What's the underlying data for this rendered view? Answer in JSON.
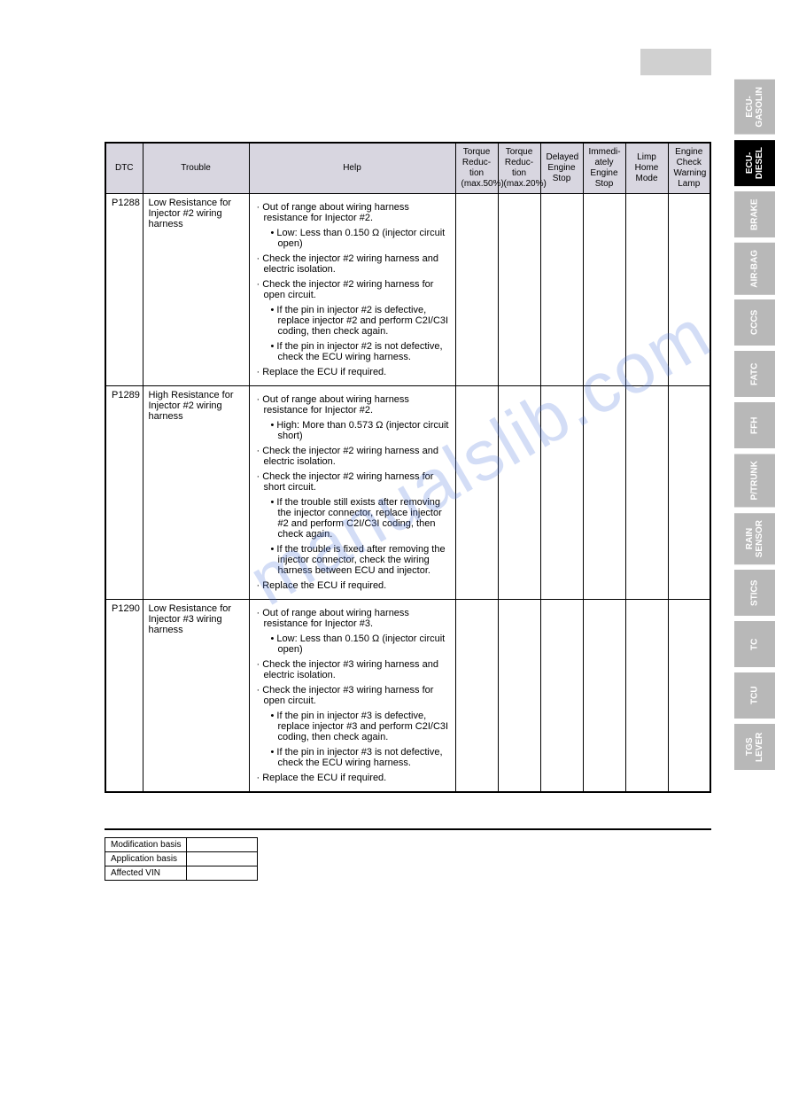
{
  "header_gray_box": "",
  "watermark_text": "manualslib.com",
  "side_tabs": [
    {
      "label": "ECU-\nGASOLIN",
      "active": false
    },
    {
      "label": "ECU-\nDIESEL",
      "active": true
    },
    {
      "label": "BRAKE",
      "active": false
    },
    {
      "label": "AIR-BAG",
      "active": false
    },
    {
      "label": "CCCS",
      "active": false
    },
    {
      "label": "FATC",
      "active": false
    },
    {
      "label": "FFH",
      "active": false
    },
    {
      "label": "P/TRUNK",
      "active": false
    },
    {
      "label": "RAIN\nSENSOR",
      "active": false
    },
    {
      "label": "STICS",
      "active": false
    },
    {
      "label": "TC",
      "active": false
    },
    {
      "label": "TCU",
      "active": false
    },
    {
      "label": "TGS\nLEVER",
      "active": false
    }
  ],
  "table": {
    "columns": [
      "DTC",
      "Trouble",
      "Help",
      "Torque Reduc-tion (max.50%)",
      "Torque Reduc-tion (max.20%)",
      "Delayed Engine Stop",
      "Immedi-ately Engine Stop",
      "Limp Home Mode",
      "Engine Check Warning Lamp"
    ],
    "header_bg": "#d8d6e0",
    "border_color": "#000000",
    "rows": [
      {
        "dtc": "P1288",
        "trouble": "Low Resistance for Injector #2 wiring harness",
        "help": {
          "lines": [
            "· Out of range about wiring harness resistance for Injector #2.",
            "  • Low: Less than 0.150 Ω (injector circuit open)",
            "· Check the injector #2 wiring harness and electric isolation.",
            "· Check the injector #2 wiring harness for open circuit.",
            "  • If the pin in injector #2 is defective, replace injector #2 and perform C2I/C3I coding, then check again.",
            "  • If the pin in injector #2 is not defective, check the ECU wiring harness.",
            "· Replace the ECU if required."
          ]
        },
        "flags": [
          "",
          "",
          "",
          "",
          "",
          ""
        ]
      },
      {
        "dtc": "P1289",
        "trouble": "High Resistance for Injector #2 wiring harness",
        "help": {
          "lines": [
            "· Out of range about wiring harness resistance for Injector #2.",
            "  • High: More than 0.573 Ω (injector circuit short)",
            "· Check the injector #2 wiring harness and electric isolation.",
            "· Check the injector #2 wiring harness for short circuit.",
            "  • If the trouble still exists after removing the injector connector, replace injector #2 and perform C2I/C3I coding, then check again.",
            "  • If the trouble is fixed after removing the injector connector, check the wiring harness between ECU and injector.",
            "· Replace the ECU if required."
          ]
        },
        "flags": [
          "",
          "",
          "",
          "",
          "",
          ""
        ]
      },
      {
        "dtc": "P1290",
        "trouble": "Low Resistance for Injector #3 wiring harness",
        "help": {
          "lines": [
            "· Out of range about wiring harness resistance for Injector #3.",
            "  • Low: Less than 0.150 Ω (injector circuit open)",
            "· Check the injector #3 wiring harness and electric isolation.",
            "· Check the injector #3 wiring harness for open circuit.",
            "  • If the pin in injector #3 is defective, replace injector #3 and perform C2I/C3I coding, then check again.",
            "  • If the pin in injector #3 is not defective, check the ECU wiring harness.",
            "· Replace the ECU if required."
          ]
        },
        "flags": [
          "",
          "",
          "",
          "",
          "",
          ""
        ]
      }
    ]
  },
  "footer": {
    "rows": [
      {
        "label": "Modification basis",
        "value": ""
      },
      {
        "label": "Application basis",
        "value": ""
      },
      {
        "label": "Affected VIN",
        "value": ""
      }
    ]
  }
}
